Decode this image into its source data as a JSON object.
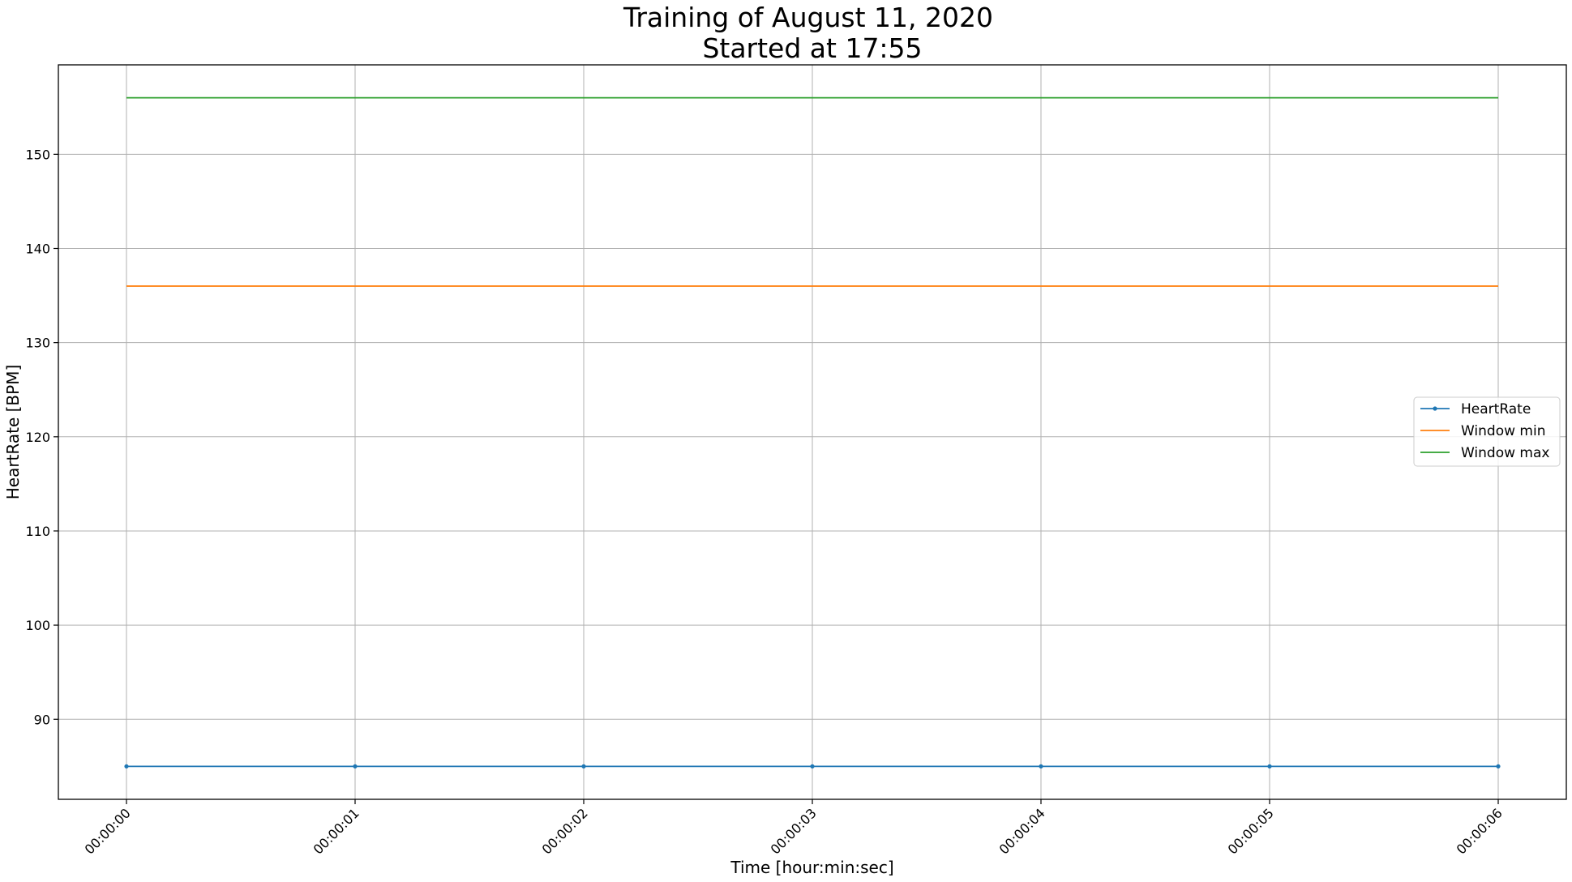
{
  "chart_data": {
    "type": "line",
    "title": "Training of August 11, 2020\nStarted at 17:55",
    "title_lines": [
      "Training of August 11, 2020",
      "Started at 17:55"
    ],
    "xlabel": "Time [hour:min:sec]",
    "ylabel": "HeartRate [BPM]",
    "categories": [
      "00:00:00",
      "00:00:01",
      "00:00:02",
      "00:00:03",
      "00:00:04",
      "00:00:05",
      "00:00:06"
    ],
    "x_tick_rotation_deg": 45,
    "ylim": [
      81.5,
      159.5
    ],
    "yticks": [
      90,
      100,
      110,
      120,
      130,
      140,
      150
    ],
    "grid": true,
    "legend_position": "center-right",
    "series": [
      {
        "name": "HeartRate",
        "color": "#1f77b4",
        "marker": "dot",
        "values": [
          85,
          85,
          85,
          85,
          85,
          85,
          85
        ]
      },
      {
        "name": "Window min",
        "color": "#ff7f0e",
        "marker": "none",
        "values": [
          136,
          136,
          136,
          136,
          136,
          136,
          136
        ]
      },
      {
        "name": "Window max",
        "color": "#2ca02c",
        "marker": "none",
        "values": [
          156,
          156,
          156,
          156,
          156,
          156,
          156
        ]
      }
    ]
  }
}
